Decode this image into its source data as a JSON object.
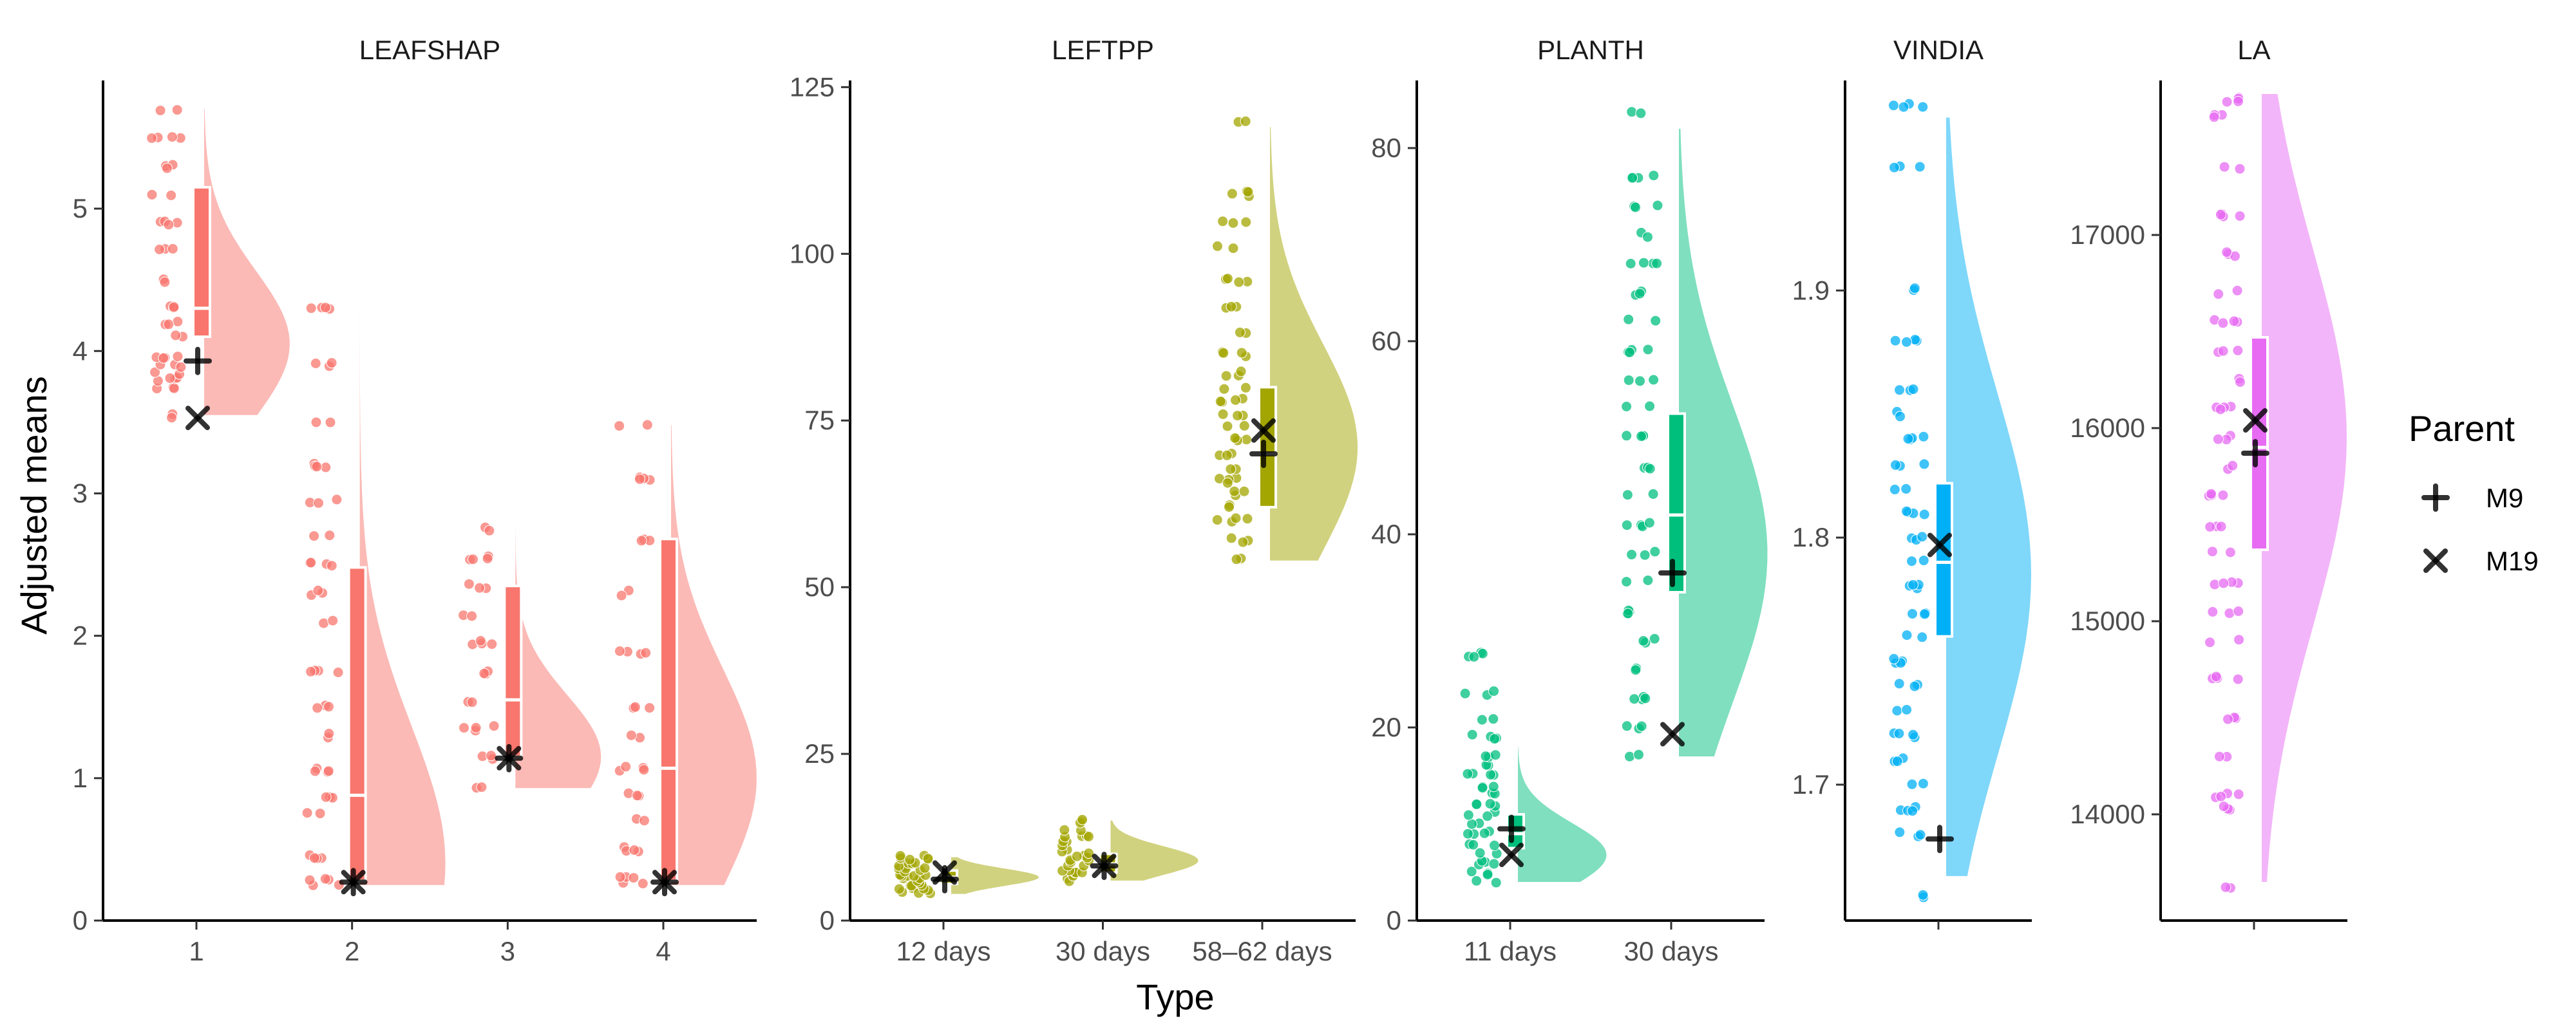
{
  "chart_data": [
    {
      "type": "raincloud",
      "title": "LEAFSHAP",
      "categories": [
        "1",
        "2",
        "3",
        "4"
      ],
      "ylim": [
        0,
        5.9
      ],
      "yticks": [
        0,
        1,
        2,
        3,
        4,
        5
      ],
      "color": "#f8766d",
      "series": [
        {
          "category": "1",
          "median": 4.3,
          "q1": 4.1,
          "q3": 5.15,
          "density_min": 3.55,
          "density_max": 5.7,
          "density_peak": 4.05,
          "points": [
            3.55,
            3.75,
            3.8,
            3.85,
            3.9,
            3.95,
            4.1,
            4.2,
            4.3,
            4.5,
            4.7,
            4.9,
            5.1,
            5.3,
            5.5,
            5.7
          ],
          "M9": 3.93,
          "M19": 3.53
        },
        {
          "category": "2",
          "median": 0.88,
          "q1": 0.28,
          "q3": 2.48,
          "density_min": 0.25,
          "density_max": 4.3,
          "density_peak": 0.4,
          "points": [
            0.25,
            0.3,
            0.45,
            0.75,
            0.88,
            1.05,
            1.3,
            1.5,
            1.75,
            2.1,
            2.3,
            2.5,
            2.7,
            2.95,
            3.2,
            3.5,
            3.9,
            4.3
          ],
          "M9": 0.27,
          "M19": 0.27
        },
        {
          "category": "3",
          "median": 1.55,
          "q1": 1.15,
          "q3": 2.35,
          "density_min": 0.93,
          "density_max": 2.75,
          "density_peak": 1.15,
          "points": [
            0.93,
            1.15,
            1.35,
            1.55,
            1.75,
            1.95,
            2.15,
            2.35,
            2.55,
            2.75
          ],
          "M9": 1.14,
          "M19": 1.14
        },
        {
          "category": "4",
          "median": 1.07,
          "q1": 0.28,
          "q3": 2.68,
          "density_min": 0.25,
          "density_max": 3.48,
          "density_peak": 1.0,
          "points": [
            0.25,
            0.3,
            0.5,
            0.7,
            0.88,
            1.07,
            1.3,
            1.5,
            1.88,
            2.3,
            2.68,
            3.1,
            3.48
          ],
          "M9": 0.27,
          "M19": 0.27
        }
      ]
    },
    {
      "type": "raincloud",
      "title": "LEFTPP",
      "categories": [
        "12 days",
        "30 days",
        "58–62 days"
      ],
      "ylim": [
        0,
        126
      ],
      "yticks": [
        0,
        25,
        50,
        75,
        100,
        125
      ],
      "xlabel": "Type",
      "color": "#a3a500",
      "series": [
        {
          "category": "12 days",
          "median": 6.5,
          "q1": 5.5,
          "q3": 7.5,
          "density_min": 4,
          "density_max": 9.5,
          "density_peak": 6.5,
          "points": [
            4,
            4.5,
            5,
            5.5,
            6,
            6.5,
            7,
            7.5,
            8,
            8.5,
            9,
            9.5
          ],
          "M9": 6.2,
          "M19": 7.2
        },
        {
          "category": "30 days",
          "median": 8.5,
          "q1": 7.2,
          "q3": 10,
          "density_min": 6,
          "density_max": 15,
          "density_peak": 9,
          "points": [
            6,
            6.8,
            7.5,
            8.2,
            9,
            9.8,
            10.6,
            11.5,
            12.5,
            13.5,
            15
          ],
          "M9": 8.2,
          "M19": 8.2
        },
        {
          "category": "58–62 days",
          "median": 70,
          "q1": 62,
          "q3": 80,
          "density_min": 54,
          "density_max": 119,
          "density_peak": 71,
          "points": [
            54,
            57,
            60,
            62,
            64,
            66,
            68,
            70,
            72,
            74,
            76,
            78,
            80,
            82,
            85,
            88,
            92,
            96,
            101,
            105,
            109,
            120
          ],
          "M9": 70,
          "M19": 73.5
        }
      ]
    },
    {
      "type": "raincloud",
      "title": "PLANTH",
      "categories": [
        "11 days",
        "30 days"
      ],
      "ylim": [
        0,
        87
      ],
      "yticks": [
        0,
        20,
        40,
        60,
        80
      ],
      "color": "#00bf7d",
      "series": [
        {
          "category": "11 days",
          "median": 9,
          "q1": 7.5,
          "q3": 11,
          "density_min": 4,
          "density_max": 18,
          "density_peak": 6.8,
          "points": [
            4,
            5,
            6,
            7,
            8,
            9,
            10,
            11,
            12,
            13,
            14,
            15,
            16,
            17,
            19,
            21,
            23.5,
            27.5
          ],
          "M9": 9.5,
          "M19": 6.8
        },
        {
          "category": "30 days",
          "median": 42,
          "q1": 34,
          "q3": 52.5,
          "density_min": 17,
          "density_max": 82,
          "density_peak": 38,
          "points": [
            17,
            20,
            23,
            26,
            29,
            32,
            35,
            38,
            41,
            44,
            47,
            50,
            53,
            56,
            59,
            62,
            65,
            68,
            71,
            74,
            77,
            83.5
          ],
          "M9": 36,
          "M19": 19.3
        }
      ]
    },
    {
      "type": "raincloud",
      "title": "VINDIA",
      "categories": [
        ""
      ],
      "ylim": [
        1.645,
        1.985
      ],
      "yticks": [
        1.7,
        1.8,
        1.9
      ],
      "ytick_labels": [
        "1.7",
        "1.8",
        "1.9"
      ],
      "color": "#00b0f6",
      "series": [
        {
          "category": "",
          "median": 1.79,
          "q1": 1.76,
          "q3": 1.822,
          "density_min": 1.663,
          "density_max": 1.97,
          "density_peak": 1.785,
          "points": [
            1.655,
            1.68,
            1.69,
            1.7,
            1.71,
            1.72,
            1.73,
            1.74,
            1.75,
            1.76,
            1.77,
            1.78,
            1.79,
            1.8,
            1.81,
            1.82,
            1.83,
            1.84,
            1.85,
            1.86,
            1.88,
            1.9,
            1.95,
            1.975
          ],
          "M9": 1.678,
          "M19": 1.797
        }
      ]
    },
    {
      "type": "raincloud",
      "title": "LA",
      "categories": [
        ""
      ],
      "ylim": [
        13450,
        17800
      ],
      "yticks": [
        14000,
        15000,
        16000,
        17000
      ],
      "ytick_labels": [
        "14000",
        "15000",
        "16000",
        "17000"
      ],
      "color": "#e76bf3",
      "series": [
        {
          "category": "",
          "median": 15900,
          "q1": 15370,
          "q3": 16470,
          "density_min": 13650,
          "density_max": 17730,
          "density_peak": 15950,
          "points": [
            13620,
            14030,
            14100,
            14300,
            14500,
            14700,
            14900,
            15050,
            15200,
            15350,
            15500,
            15650,
            15800,
            15950,
            16100,
            16250,
            16400,
            16550,
            16700,
            16900,
            17100,
            17350,
            17620,
            17700
          ],
          "M9": 15870,
          "M19": 16040
        }
      ]
    }
  ],
  "ylabel": "Adjusted means",
  "legend": {
    "title": "Parent",
    "placement": "right",
    "items": [
      {
        "label": "M9",
        "symbol": "plus"
      },
      {
        "label": "M19",
        "symbol": "cross"
      }
    ]
  }
}
